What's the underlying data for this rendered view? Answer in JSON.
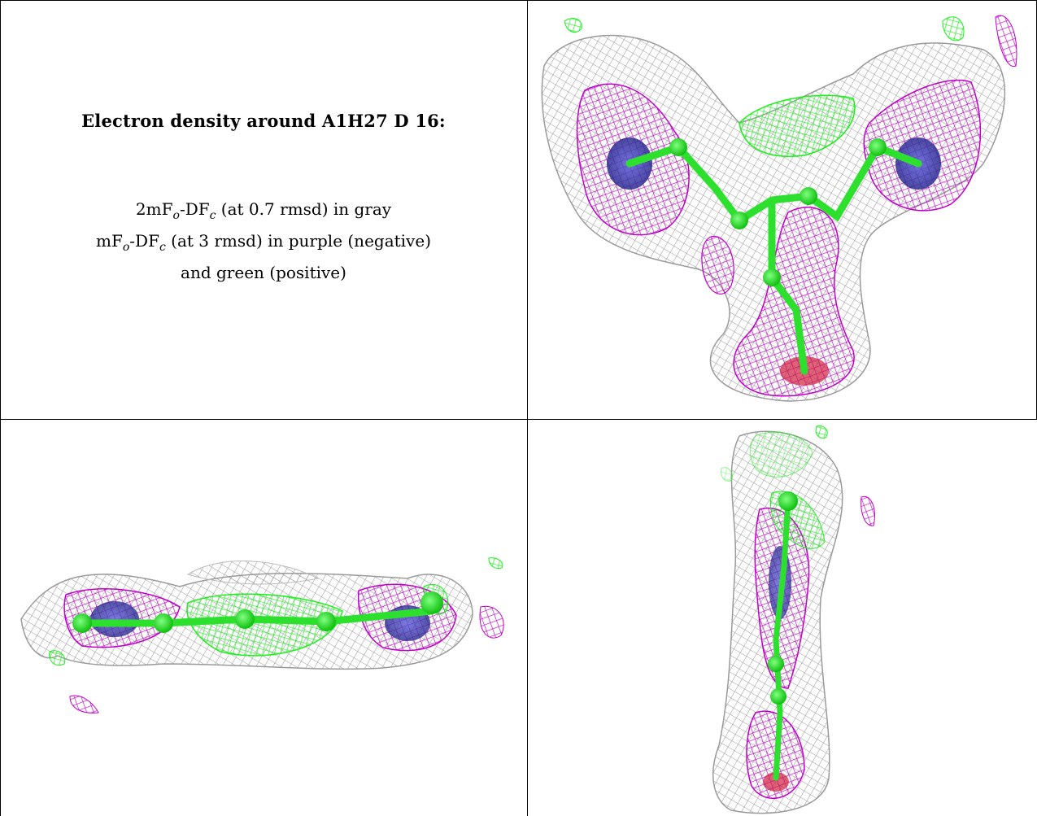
{
  "caption": {
    "title": "Electron density around A1H27 D 16:",
    "line1": {
      "prefix": "2mF",
      "sub1": "o",
      "mid": "-DF",
      "sub2": "c",
      "suffix": " (at 0.7 rmsd) in gray"
    },
    "line2": {
      "prefix": "mF",
      "sub1": "o",
      "mid": "-DF",
      "sub2": "c",
      "suffix": " (at 3 rmsd) in purple (negative)"
    },
    "line3": "and green (positive)"
  },
  "colors": {
    "mesh_gray": "#9a9a9a",
    "mesh_purple": "#c000c8",
    "mesh_green": "#18f018",
    "atom_blue": "#3a3aa8",
    "atom_red": "#d02040"
  },
  "panels": [
    {
      "view": "front"
    },
    {
      "view": "side"
    },
    {
      "view": "end-on"
    }
  ]
}
